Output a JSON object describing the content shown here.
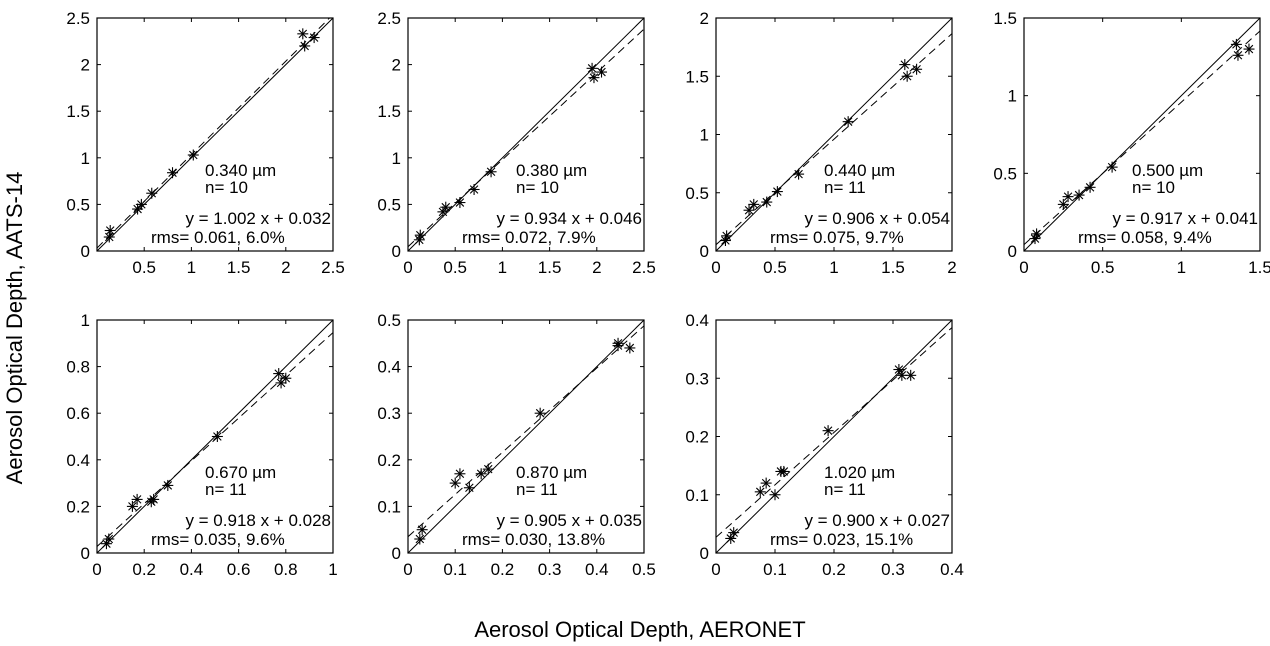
{
  "figure": {
    "ylabel": "Aerosol Optical Depth,  AATS-14",
    "xlabel": "Aerosol Optical Depth, AERONET"
  },
  "chart_data": [
    {
      "type": "scatter",
      "wavelength": "0.340 µm",
      "n": "n= 10",
      "fit": "y = 1.002 x + 0.032",
      "rms": "rms= 0.061, 6.0%",
      "slope": 1.002,
      "intercept": 0.032,
      "xlim": [
        0,
        2.5
      ],
      "ylim": [
        0,
        2.5
      ],
      "xticks": [
        0.5,
        1,
        1.5,
        2,
        2.5
      ],
      "yticks": [
        0,
        0.5,
        1,
        1.5,
        2,
        2.5
      ],
      "points": [
        [
          0.13,
          0.15
        ],
        [
          0.14,
          0.22
        ],
        [
          0.43,
          0.45
        ],
        [
          0.47,
          0.5
        ],
        [
          0.58,
          0.62
        ],
        [
          0.8,
          0.84
        ],
        [
          1.02,
          1.03
        ],
        [
          2.18,
          2.33
        ],
        [
          2.2,
          2.2
        ],
        [
          2.3,
          2.29
        ]
      ]
    },
    {
      "type": "scatter",
      "wavelength": "0.380 µm",
      "n": "n= 10",
      "fit": "y = 0.934 x + 0.046",
      "rms": "rms= 0.072, 7.9%",
      "slope": 0.934,
      "intercept": 0.046,
      "xlim": [
        0,
        2.5
      ],
      "ylim": [
        0,
        2.5
      ],
      "xticks": [
        0,
        0.5,
        1,
        1.5,
        2,
        2.5
      ],
      "yticks": [
        0,
        0.5,
        1,
        1.5,
        2,
        2.5
      ],
      "points": [
        [
          0.12,
          0.12
        ],
        [
          0.13,
          0.17
        ],
        [
          0.37,
          0.42
        ],
        [
          0.4,
          0.47
        ],
        [
          0.55,
          0.52
        ],
        [
          0.7,
          0.66
        ],
        [
          0.88,
          0.85
        ],
        [
          1.95,
          1.96
        ],
        [
          1.97,
          1.86
        ],
        [
          2.05,
          1.92
        ]
      ]
    },
    {
      "type": "scatter",
      "wavelength": "0.440 µm",
      "n": "n= 11",
      "fit": "y = 0.906 x + 0.054",
      "rms": "rms= 0.075, 9.7%",
      "slope": 0.906,
      "intercept": 0.054,
      "xlim": [
        0,
        2
      ],
      "ylim": [
        0,
        2
      ],
      "xticks": [
        0,
        0.5,
        1,
        1.5,
        2
      ],
      "yticks": [
        0,
        0.5,
        1,
        1.5,
        2
      ],
      "points": [
        [
          0.08,
          0.09
        ],
        [
          0.09,
          0.13
        ],
        [
          0.28,
          0.35
        ],
        [
          0.32,
          0.4
        ],
        [
          0.43,
          0.42
        ],
        [
          0.52,
          0.51
        ],
        [
          0.7,
          0.66
        ],
        [
          1.12,
          1.11
        ],
        [
          1.6,
          1.6
        ],
        [
          1.62,
          1.5
        ],
        [
          1.7,
          1.56
        ]
      ]
    },
    {
      "type": "scatter",
      "wavelength": "0.500 µm",
      "n": "n= 10",
      "fit": "y = 0.917 x + 0.041",
      "rms": "rms= 0.058, 9.4%",
      "slope": 0.917,
      "intercept": 0.041,
      "xlim": [
        0,
        1.5
      ],
      "ylim": [
        0,
        1.5
      ],
      "xticks": [
        0,
        0.5,
        1,
        1.5
      ],
      "yticks": [
        0,
        0.5,
        1,
        1.5
      ],
      "points": [
        [
          0.07,
          0.08
        ],
        [
          0.08,
          0.11
        ],
        [
          0.25,
          0.3
        ],
        [
          0.28,
          0.35
        ],
        [
          0.35,
          0.36
        ],
        [
          0.42,
          0.41
        ],
        [
          0.56,
          0.54
        ],
        [
          1.35,
          1.33
        ],
        [
          1.36,
          1.26
        ],
        [
          1.43,
          1.3
        ]
      ]
    },
    {
      "type": "scatter",
      "wavelength": "0.670 µm",
      "n": "n= 11",
      "fit": "y = 0.918 x + 0.028",
      "rms": "rms= 0.035, 9.6%",
      "slope": 0.918,
      "intercept": 0.028,
      "xlim": [
        0,
        1
      ],
      "ylim": [
        0,
        1
      ],
      "xticks": [
        0,
        0.2,
        0.4,
        0.6,
        0.8,
        1
      ],
      "yticks": [
        0,
        0.2,
        0.4,
        0.6,
        0.8,
        1
      ],
      "points": [
        [
          0.04,
          0.04
        ],
        [
          0.05,
          0.06
        ],
        [
          0.15,
          0.2
        ],
        [
          0.17,
          0.23
        ],
        [
          0.23,
          0.22
        ],
        [
          0.24,
          0.23
        ],
        [
          0.3,
          0.29
        ],
        [
          0.51,
          0.5
        ],
        [
          0.77,
          0.77
        ],
        [
          0.78,
          0.73
        ],
        [
          0.8,
          0.75
        ]
      ]
    },
    {
      "type": "scatter",
      "wavelength": "0.870 µm",
      "n": "n= 11",
      "fit": "y = 0.905 x + 0.035",
      "rms": "rms= 0.030, 13.8%",
      "slope": 0.905,
      "intercept": 0.035,
      "xlim": [
        0,
        0.5
      ],
      "ylim": [
        0,
        0.5
      ],
      "xticks": [
        0,
        0.1,
        0.2,
        0.3,
        0.4,
        0.5
      ],
      "yticks": [
        0,
        0.1,
        0.2,
        0.3,
        0.4,
        0.5
      ],
      "points": [
        [
          0.025,
          0.03
        ],
        [
          0.03,
          0.05
        ],
        [
          0.1,
          0.15
        ],
        [
          0.11,
          0.17
        ],
        [
          0.13,
          0.14
        ],
        [
          0.155,
          0.17
        ],
        [
          0.17,
          0.18
        ],
        [
          0.28,
          0.3
        ],
        [
          0.445,
          0.45
        ],
        [
          0.445,
          0.445
        ],
        [
          0.47,
          0.44
        ]
      ]
    },
    {
      "type": "scatter",
      "wavelength": "1.020 µm",
      "n": "n= 11",
      "fit": "y = 0.900 x + 0.027",
      "rms": "rms= 0.023, 15.1%",
      "slope": 0.9,
      "intercept": 0.027,
      "xlim": [
        0,
        0.4
      ],
      "ylim": [
        0,
        0.4
      ],
      "xticks": [
        0,
        0.1,
        0.2,
        0.3,
        0.4
      ],
      "yticks": [
        0,
        0.1,
        0.2,
        0.3,
        0.4
      ],
      "points": [
        [
          0.025,
          0.025
        ],
        [
          0.03,
          0.035
        ],
        [
          0.075,
          0.105
        ],
        [
          0.085,
          0.12
        ],
        [
          0.1,
          0.1
        ],
        [
          0.11,
          0.14
        ],
        [
          0.115,
          0.14
        ],
        [
          0.19,
          0.21
        ],
        [
          0.31,
          0.315
        ],
        [
          0.315,
          0.305
        ],
        [
          0.33,
          0.305
        ]
      ]
    }
  ]
}
